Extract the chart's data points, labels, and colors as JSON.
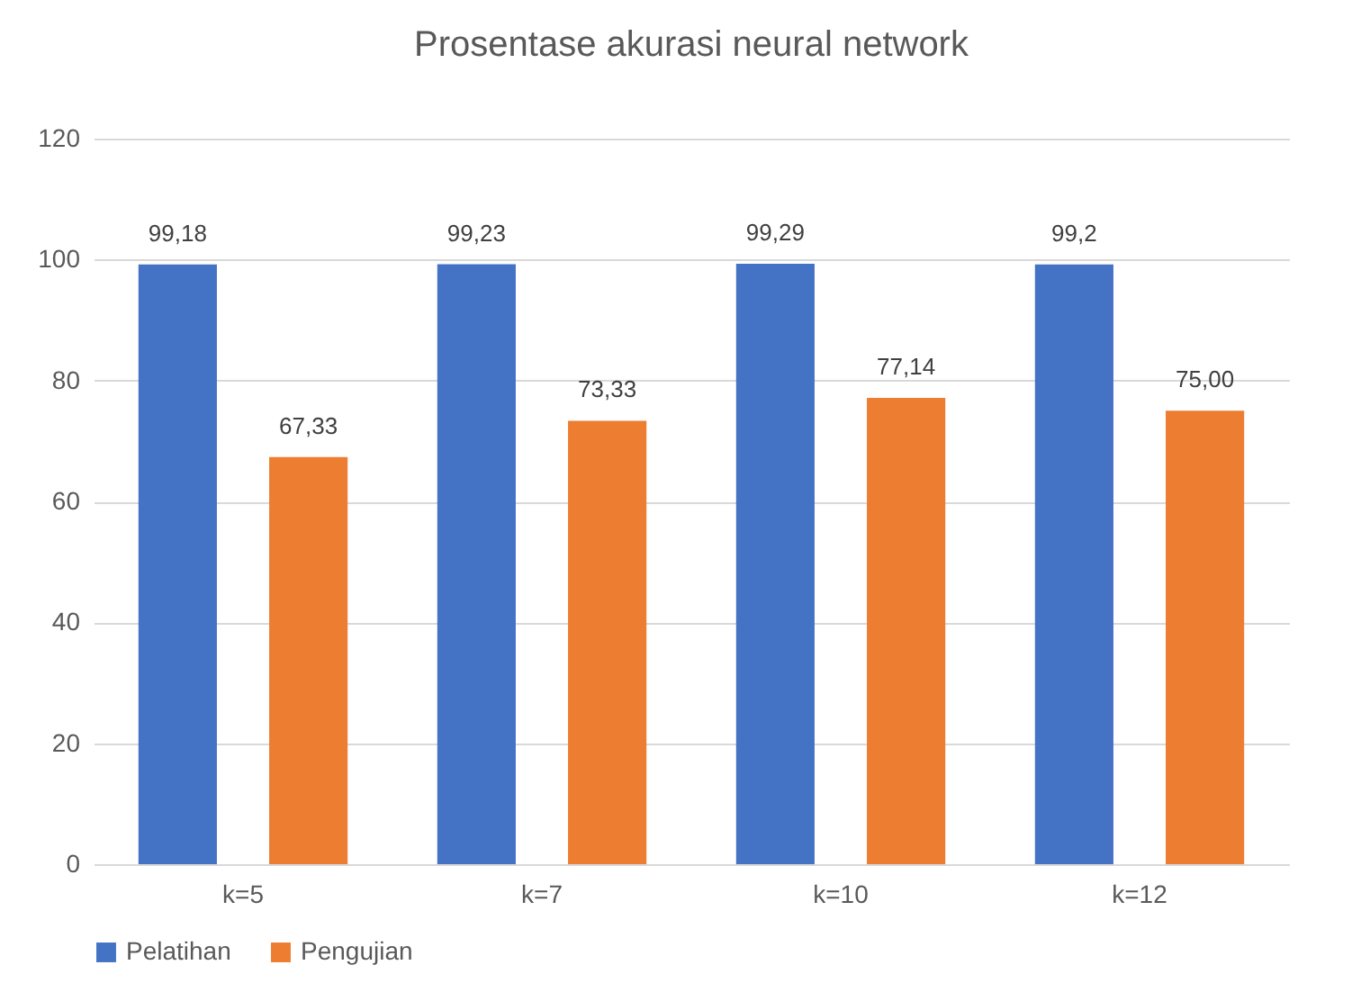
{
  "chart_data": {
    "type": "bar",
    "title": "Prosentase akurasi neural network",
    "categories": [
      "k=5",
      "k=7",
      "k=10",
      "k=12"
    ],
    "series": [
      {
        "name": "Pelatihan",
        "color": "#4472c4",
        "values": [
          99.18,
          99.23,
          99.29,
          99.2
        ],
        "value_labels": [
          "99,18",
          "99,23",
          "99,29",
          "99,2"
        ]
      },
      {
        "name": "Pengujian",
        "color": "#ed7d31",
        "values": [
          67.33,
          73.33,
          77.14,
          75.0
        ],
        "value_labels": [
          "67,33",
          "73,33",
          "77,14",
          "75,00"
        ]
      }
    ],
    "ylim": [
      0,
      120
    ],
    "yticks": [
      0,
      20,
      40,
      60,
      80,
      100,
      120
    ],
    "grid": "y",
    "legend": "bottom"
  }
}
